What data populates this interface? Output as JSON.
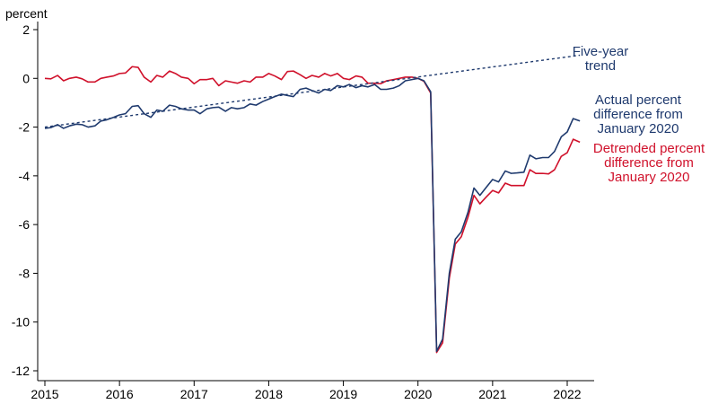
{
  "chart_data": {
    "type": "line",
    "title": "",
    "xlabel": "",
    "ylabel": "percent",
    "xlim": [
      2015.0,
      2022.25
    ],
    "ylim": [
      -12,
      2
    ],
    "x_ticks": [
      2015,
      2016,
      2017,
      2018,
      2019,
      2020,
      2021,
      2022
    ],
    "y_ticks": [
      2,
      0,
      -2,
      -4,
      -6,
      -8,
      -10,
      -12
    ],
    "grid": false,
    "series": [
      {
        "name": "Five-year trend",
        "color": "#1f3a6e",
        "style": "dotted",
        "points": [
          [
            2015.0,
            -2.0
          ],
          [
            2022.17,
            0.95
          ]
        ]
      },
      {
        "name": "Actual percent difference from January 2020",
        "color": "#1f3a6e",
        "style": "solid",
        "points": [
          [
            2015.0,
            -2.05
          ],
          [
            2015.08,
            -2.02
          ],
          [
            2015.17,
            -1.9
          ],
          [
            2015.25,
            -2.05
          ],
          [
            2015.33,
            -1.95
          ],
          [
            2015.42,
            -1.88
          ],
          [
            2015.5,
            -1.9
          ],
          [
            2015.58,
            -2.0
          ],
          [
            2015.67,
            -1.95
          ],
          [
            2015.75,
            -1.75
          ],
          [
            2015.83,
            -1.7
          ],
          [
            2015.92,
            -1.6
          ],
          [
            2016.0,
            -1.5
          ],
          [
            2016.08,
            -1.45
          ],
          [
            2016.17,
            -1.15
          ],
          [
            2016.25,
            -1.12
          ],
          [
            2016.33,
            -1.45
          ],
          [
            2016.42,
            -1.6
          ],
          [
            2016.5,
            -1.3
          ],
          [
            2016.58,
            -1.35
          ],
          [
            2016.67,
            -1.1
          ],
          [
            2016.75,
            -1.15
          ],
          [
            2016.83,
            -1.25
          ],
          [
            2016.92,
            -1.3
          ],
          [
            2017.0,
            -1.3
          ],
          [
            2017.08,
            -1.45
          ],
          [
            2017.17,
            -1.25
          ],
          [
            2017.25,
            -1.2
          ],
          [
            2017.33,
            -1.18
          ],
          [
            2017.42,
            -1.35
          ],
          [
            2017.5,
            -1.2
          ],
          [
            2017.58,
            -1.25
          ],
          [
            2017.67,
            -1.2
          ],
          [
            2017.75,
            -1.05
          ],
          [
            2017.83,
            -1.1
          ],
          [
            2017.92,
            -0.95
          ],
          [
            2018.0,
            -0.85
          ],
          [
            2018.08,
            -0.75
          ],
          [
            2018.17,
            -0.65
          ],
          [
            2018.25,
            -0.7
          ],
          [
            2018.33,
            -0.75
          ],
          [
            2018.42,
            -0.45
          ],
          [
            2018.5,
            -0.4
          ],
          [
            2018.58,
            -0.5
          ],
          [
            2018.67,
            -0.6
          ],
          [
            2018.75,
            -0.45
          ],
          [
            2018.83,
            -0.5
          ],
          [
            2018.92,
            -0.3
          ],
          [
            2019.0,
            -0.35
          ],
          [
            2019.08,
            -0.25
          ],
          [
            2019.17,
            -0.38
          ],
          [
            2019.25,
            -0.3
          ],
          [
            2019.33,
            -0.35
          ],
          [
            2019.42,
            -0.25
          ],
          [
            2019.5,
            -0.45
          ],
          [
            2019.58,
            -0.45
          ],
          [
            2019.67,
            -0.4
          ],
          [
            2019.75,
            -0.3
          ],
          [
            2019.83,
            -0.1
          ],
          [
            2019.92,
            -0.05
          ],
          [
            2020.0,
            0.0
          ],
          [
            2020.08,
            -0.1
          ],
          [
            2020.17,
            -0.55
          ],
          [
            2020.25,
            -11.2
          ],
          [
            2020.33,
            -10.7
          ],
          [
            2020.42,
            -8.0
          ],
          [
            2020.5,
            -6.6
          ],
          [
            2020.58,
            -6.3
          ],
          [
            2020.67,
            -5.5
          ],
          [
            2020.75,
            -4.5
          ],
          [
            2020.83,
            -4.8
          ],
          [
            2020.92,
            -4.45
          ],
          [
            2021.0,
            -4.15
          ],
          [
            2021.08,
            -4.25
          ],
          [
            2021.17,
            -3.8
          ],
          [
            2021.25,
            -3.9
          ],
          [
            2021.33,
            -3.88
          ],
          [
            2021.42,
            -3.85
          ],
          [
            2021.5,
            -3.15
          ],
          [
            2021.58,
            -3.3
          ],
          [
            2021.67,
            -3.25
          ],
          [
            2021.75,
            -3.25
          ],
          [
            2021.83,
            -3.0
          ],
          [
            2021.92,
            -2.4
          ],
          [
            2022.0,
            -2.2
          ],
          [
            2022.08,
            -1.65
          ],
          [
            2022.17,
            -1.75
          ]
        ]
      },
      {
        "name": "Detrended percent difference from January 2020",
        "color": "#d0112b",
        "style": "solid",
        "points": [
          [
            2015.0,
            0.0
          ],
          [
            2015.08,
            -0.02
          ],
          [
            2015.17,
            0.12
          ],
          [
            2015.25,
            -0.1
          ],
          [
            2015.33,
            0.0
          ],
          [
            2015.42,
            0.05
          ],
          [
            2015.5,
            -0.02
          ],
          [
            2015.58,
            -0.15
          ],
          [
            2015.67,
            -0.15
          ],
          [
            2015.75,
            0.0
          ],
          [
            2015.83,
            0.05
          ],
          [
            2015.92,
            0.1
          ],
          [
            2016.0,
            0.2
          ],
          [
            2016.08,
            0.22
          ],
          [
            2016.17,
            0.48
          ],
          [
            2016.25,
            0.45
          ],
          [
            2016.33,
            0.05
          ],
          [
            2016.42,
            -0.15
          ],
          [
            2016.5,
            0.12
          ],
          [
            2016.58,
            0.05
          ],
          [
            2016.67,
            0.3
          ],
          [
            2016.75,
            0.2
          ],
          [
            2016.83,
            0.05
          ],
          [
            2016.92,
            0.0
          ],
          [
            2017.0,
            -0.22
          ],
          [
            2017.08,
            -0.05
          ],
          [
            2017.17,
            -0.05
          ],
          [
            2017.25,
            0.0
          ],
          [
            2017.33,
            -0.3
          ],
          [
            2017.42,
            -0.1
          ],
          [
            2017.5,
            -0.15
          ],
          [
            2017.58,
            -0.2
          ],
          [
            2017.67,
            -0.1
          ],
          [
            2017.75,
            -0.15
          ],
          [
            2017.83,
            0.05
          ],
          [
            2017.92,
            0.05
          ],
          [
            2018.0,
            0.2
          ],
          [
            2018.08,
            0.1
          ],
          [
            2018.17,
            -0.05
          ],
          [
            2018.25,
            0.28
          ],
          [
            2018.33,
            0.3
          ],
          [
            2018.42,
            0.15
          ],
          [
            2018.5,
            0.0
          ],
          [
            2018.58,
            0.12
          ],
          [
            2018.67,
            0.05
          ],
          [
            2018.75,
            0.2
          ],
          [
            2018.83,
            0.1
          ],
          [
            2018.92,
            0.2
          ],
          [
            2019.0,
            0.0
          ],
          [
            2019.08,
            -0.05
          ],
          [
            2019.17,
            0.1
          ],
          [
            2019.25,
            0.05
          ],
          [
            2019.33,
            -0.2
          ],
          [
            2019.42,
            -0.2
          ],
          [
            2019.5,
            -0.22
          ],
          [
            2019.58,
            -0.1
          ],
          [
            2019.67,
            -0.05
          ],
          [
            2019.75,
            0.0
          ],
          [
            2019.83,
            0.05
          ],
          [
            2019.92,
            0.05
          ],
          [
            2020.0,
            0.0
          ],
          [
            2020.08,
            -0.12
          ],
          [
            2020.17,
            -0.6
          ],
          [
            2020.25,
            -11.25
          ],
          [
            2020.33,
            -10.85
          ],
          [
            2020.42,
            -8.2
          ],
          [
            2020.5,
            -6.8
          ],
          [
            2020.58,
            -6.5
          ],
          [
            2020.67,
            -5.7
          ],
          [
            2020.75,
            -4.8
          ],
          [
            2020.83,
            -5.15
          ],
          [
            2020.92,
            -4.85
          ],
          [
            2021.0,
            -4.6
          ],
          [
            2021.08,
            -4.7
          ],
          [
            2021.17,
            -4.3
          ],
          [
            2021.25,
            -4.4
          ],
          [
            2021.33,
            -4.4
          ],
          [
            2021.42,
            -4.4
          ],
          [
            2021.5,
            -3.75
          ],
          [
            2021.58,
            -3.9
          ],
          [
            2021.67,
            -3.9
          ],
          [
            2021.75,
            -3.92
          ],
          [
            2021.83,
            -3.75
          ],
          [
            2021.92,
            -3.2
          ],
          [
            2022.0,
            -3.05
          ],
          [
            2022.08,
            -2.5
          ],
          [
            2022.17,
            -2.62
          ]
        ]
      }
    ],
    "annotations": [
      {
        "lines": [
          "Five-year",
          "trend"
        ],
        "color": "#1f3a6e"
      },
      {
        "lines": [
          "Actual percent",
          "difference from",
          "January 2020"
        ],
        "color": "#1f3a6e"
      },
      {
        "lines": [
          "Detrended percent",
          "difference from",
          "January 2020"
        ],
        "color": "#d0112b"
      }
    ]
  }
}
